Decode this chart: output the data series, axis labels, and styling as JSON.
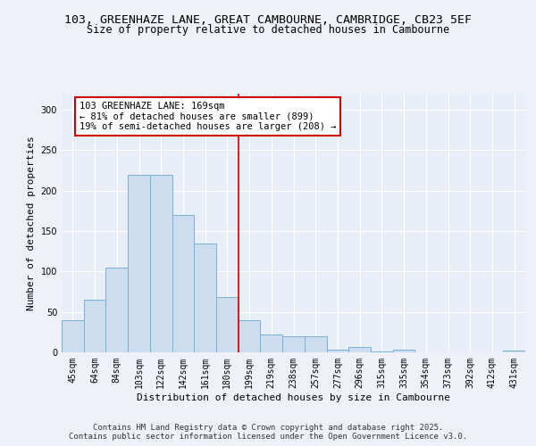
{
  "title_line1": "103, GREENHAZE LANE, GREAT CAMBOURNE, CAMBRIDGE, CB23 5EF",
  "title_line2": "Size of property relative to detached houses in Cambourne",
  "xlabel": "Distribution of detached houses by size in Cambourne",
  "ylabel": "Number of detached properties",
  "categories": [
    "45sqm",
    "64sqm",
    "84sqm",
    "103sqm",
    "122sqm",
    "142sqm",
    "161sqm",
    "180sqm",
    "199sqm",
    "219sqm",
    "238sqm",
    "257sqm",
    "277sqm",
    "296sqm",
    "315sqm",
    "335sqm",
    "354sqm",
    "373sqm",
    "392sqm",
    "412sqm",
    "431sqm"
  ],
  "values": [
    40,
    65,
    105,
    220,
    220,
    170,
    135,
    68,
    40,
    22,
    20,
    20,
    3,
    7,
    1,
    3,
    0,
    0,
    0,
    0,
    2
  ],
  "bar_color": "#ccddf0",
  "bar_edge_color": "#7aafd4",
  "vline_x": 7.5,
  "vline_color": "#cc0000",
  "annotation_text": "103 GREENHAZE LANE: 169sqm\n← 81% of detached houses are smaller (899)\n19% of semi-detached houses are larger (208) →",
  "annotation_box_color": "#ffffff",
  "annotation_box_edge_color": "#cc0000",
  "ylim": [
    0,
    320
  ],
  "yticks": [
    0,
    50,
    100,
    150,
    200,
    250,
    300
  ],
  "plot_bg_color": "#e8eef8",
  "fig_bg_color": "#eef2f8",
  "footer_line1": "Contains HM Land Registry data © Crown copyright and database right 2025.",
  "footer_line2": "Contains public sector information licensed under the Open Government Licence v3.0.",
  "title_fontsize": 9.5,
  "subtitle_fontsize": 8.5,
  "axis_label_fontsize": 8,
  "tick_fontsize": 7,
  "annotation_fontsize": 7.5,
  "footer_fontsize": 6.5
}
